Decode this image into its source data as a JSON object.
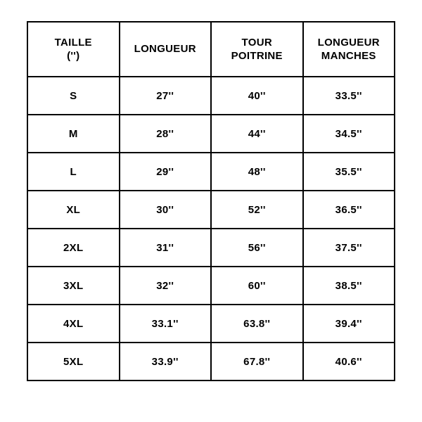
{
  "size_chart": {
    "type": "table",
    "border_color": "#000000",
    "background_color": "#ffffff",
    "text_color": "#000000",
    "font_weight": 700,
    "header_fontsize": 15,
    "cell_fontsize": 15,
    "columns": [
      {
        "label_line1": "TAILLE",
        "label_line2": "('')"
      },
      {
        "label_line1": "LONGUEUR",
        "label_line2": ""
      },
      {
        "label_line1": "TOUR",
        "label_line2": "POITRINE"
      },
      {
        "label_line1": "LONGUEUR",
        "label_line2": "MANCHES"
      }
    ],
    "rows": [
      {
        "taille": "S",
        "longueur": "27''",
        "tour_poitrine": "40''",
        "longueur_manches": "33.5''"
      },
      {
        "taille": "M",
        "longueur": "28''",
        "tour_poitrine": "44''",
        "longueur_manches": "34.5''"
      },
      {
        "taille": "L",
        "longueur": "29''",
        "tour_poitrine": "48''",
        "longueur_manches": "35.5''"
      },
      {
        "taille": "XL",
        "longueur": "30''",
        "tour_poitrine": "52''",
        "longueur_manches": "36.5''"
      },
      {
        "taille": "2XL",
        "longueur": "31''",
        "tour_poitrine": "56''",
        "longueur_manches": "37.5''"
      },
      {
        "taille": "3XL",
        "longueur": "32''",
        "tour_poitrine": "60''",
        "longueur_manches": "38.5''"
      },
      {
        "taille": "4XL",
        "longueur": "33.1''",
        "tour_poitrine": "63.8''",
        "longueur_manches": "39.4''"
      },
      {
        "taille": "5XL",
        "longueur": "33.9''",
        "tour_poitrine": "67.8''",
        "longueur_manches": "40.6''"
      }
    ]
  }
}
